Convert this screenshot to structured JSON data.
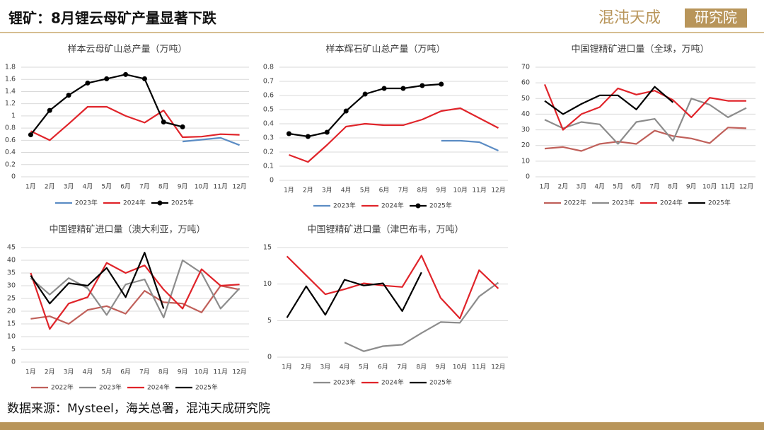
{
  "title": "锂矿：8月锂云母矿产量显著下跌",
  "logo": {
    "main": "混沌天成",
    "box": "研究院"
  },
  "source": "数据来源：Mysteel，海关总署，混沌天成研究院",
  "chart_data": [
    {
      "type": "line",
      "title": "样本云母矿山总产量（万吨）",
      "categories": [
        "1月",
        "2月",
        "3月",
        "4月",
        "5月",
        "6月",
        "7月",
        "8月",
        "9月",
        "10月",
        "11月",
        "12月"
      ],
      "ylim": [
        0,
        1.8
      ],
      "yticks": [
        0,
        0.2,
        0.4,
        0.6,
        0.8,
        1,
        1.2,
        1.4,
        1.6,
        1.8
      ],
      "grid": true,
      "legend": "bottom",
      "series": [
        {
          "name": "2023年",
          "color": "#5b8cc4",
          "values": [
            null,
            null,
            null,
            null,
            null,
            null,
            null,
            null,
            0.58,
            0.61,
            0.64,
            0.52
          ]
        },
        {
          "name": "2024年",
          "color": "#e0242a",
          "values": [
            0.75,
            0.6,
            0.87,
            1.15,
            1.15,
            1.0,
            0.89,
            1.09,
            0.65,
            0.66,
            0.7,
            0.69
          ]
        },
        {
          "name": "2025年",
          "color": "#000000",
          "marker": "circle",
          "values": [
            0.69,
            1.09,
            1.34,
            1.54,
            1.61,
            1.68,
            1.61,
            0.9,
            0.82,
            null,
            null,
            null
          ]
        }
      ]
    },
    {
      "type": "line",
      "title": "样本辉石矿山总产量（万吨）",
      "categories": [
        "1月",
        "2月",
        "3月",
        "4月",
        "5月",
        "6月",
        "7月",
        "8月",
        "9月",
        "10月",
        "11月",
        "12月"
      ],
      "ylim": [
        0,
        0.8
      ],
      "yticks": [
        0,
        0.1,
        0.2,
        0.3,
        0.4,
        0.5,
        0.6,
        0.7,
        0.8
      ],
      "grid": true,
      "legend": "bottom",
      "series": [
        {
          "name": "2023年",
          "color": "#5b8cc4",
          "values": [
            null,
            null,
            null,
            null,
            null,
            null,
            null,
            null,
            0.28,
            0.28,
            0.27,
            0.21
          ]
        },
        {
          "name": "2024年",
          "color": "#e0242a",
          "values": [
            0.18,
            0.13,
            0.25,
            0.38,
            0.4,
            0.39,
            0.39,
            0.43,
            0.49,
            0.51,
            0.44,
            0.37
          ]
        },
        {
          "name": "2025年",
          "color": "#000000",
          "marker": "circle",
          "values": [
            0.33,
            0.31,
            0.34,
            0.49,
            0.61,
            0.65,
            0.65,
            0.67,
            0.68,
            null,
            null,
            null
          ]
        }
      ]
    },
    {
      "type": "line",
      "title": "中国锂精矿进口量（全球，万吨）",
      "categories": [
        "1月",
        "2月",
        "3月",
        "4月",
        "5月",
        "6月",
        "7月",
        "8月",
        "9月",
        "10月",
        "11月",
        "12月"
      ],
      "ylim": [
        0,
        70
      ],
      "yticks": [
        0,
        10,
        20,
        30,
        40,
        50,
        60,
        70
      ],
      "grid": true,
      "legend": "bottom",
      "series": [
        {
          "name": "2022年",
          "color": "#c0605a",
          "values": [
            18,
            19,
            16.5,
            21,
            22.5,
            21,
            29.5,
            26,
            24.5,
            21.5,
            31.5,
            31
          ]
        },
        {
          "name": "2023年",
          "color": "#8c8c8c",
          "values": [
            36.5,
            31,
            35,
            33.5,
            21,
            35,
            37,
            23,
            50,
            46,
            38,
            44
          ]
        },
        {
          "name": "2024年",
          "color": "#e0242a",
          "values": [
            59,
            30,
            40,
            44.5,
            56.5,
            52.5,
            55,
            49,
            38,
            50.5,
            48.5,
            48.5
          ]
        },
        {
          "name": "2025年",
          "color": "#000000",
          "values": [
            48.5,
            40,
            46.5,
            52,
            52,
            43,
            57.5,
            47.5,
            null,
            null,
            null,
            null
          ]
        }
      ]
    },
    {
      "type": "line",
      "title": "中国锂精矿进口量（澳大利亚，万吨）",
      "categories": [
        "1月",
        "2月",
        "3月",
        "4月",
        "5月",
        "6月",
        "7月",
        "8月",
        "9月",
        "10月",
        "11月",
        "12月"
      ],
      "ylim": [
        0,
        45
      ],
      "yticks": [
        0,
        5,
        10,
        15,
        20,
        25,
        30,
        35,
        40,
        45
      ],
      "grid": true,
      "legend": "bottom",
      "series": [
        {
          "name": "2022年",
          "color": "#c0605a",
          "values": [
            17,
            18,
            15,
            20.5,
            22,
            19,
            28,
            23.5,
            23,
            19.5,
            30,
            28.5
          ]
        },
        {
          "name": "2023年",
          "color": "#8c8c8c",
          "values": [
            33,
            26.5,
            33,
            29,
            18.5,
            30.5,
            32.5,
            17.5,
            40,
            35,
            21,
            29
          ]
        },
        {
          "name": "2024年",
          "color": "#e0242a",
          "values": [
            35,
            13,
            23,
            25.5,
            39,
            35,
            38,
            28.5,
            21,
            36.5,
            30,
            30.5
          ]
        },
        {
          "name": "2025年",
          "color": "#000000",
          "values": [
            34,
            23,
            31,
            30,
            37,
            25.5,
            43,
            21,
            null,
            null,
            null,
            null
          ]
        }
      ]
    },
    {
      "type": "line",
      "title": "中国锂精矿进口量（津巴布韦，万吨）",
      "categories": [
        "1月",
        "2月",
        "3月",
        "4月",
        "5月",
        "6月",
        "7月",
        "8月",
        "9月",
        "10月",
        "11月",
        "12月"
      ],
      "ylim": [
        0,
        15
      ],
      "yticks": [
        0,
        5,
        10,
        15
      ],
      "grid": true,
      "legend": "bottom",
      "series": [
        {
          "name": "2023年",
          "color": "#8c8c8c",
          "values": [
            null,
            null,
            null,
            2.0,
            0.8,
            1.5,
            1.7,
            3.3,
            4.8,
            4.7,
            8.3,
            10.2
          ]
        },
        {
          "name": "2024年",
          "color": "#e0242a",
          "values": [
            13.8,
            11.2,
            8.6,
            9.3,
            10.1,
            9.8,
            9.6,
            13.9,
            8.1,
            5.3,
            11.9,
            9.4
          ]
        },
        {
          "name": "2025年",
          "color": "#000000",
          "values": [
            5.4,
            9.7,
            5.8,
            10.6,
            9.8,
            10.1,
            6.3,
            11.6,
            null,
            null,
            null,
            null
          ]
        }
      ]
    }
  ]
}
